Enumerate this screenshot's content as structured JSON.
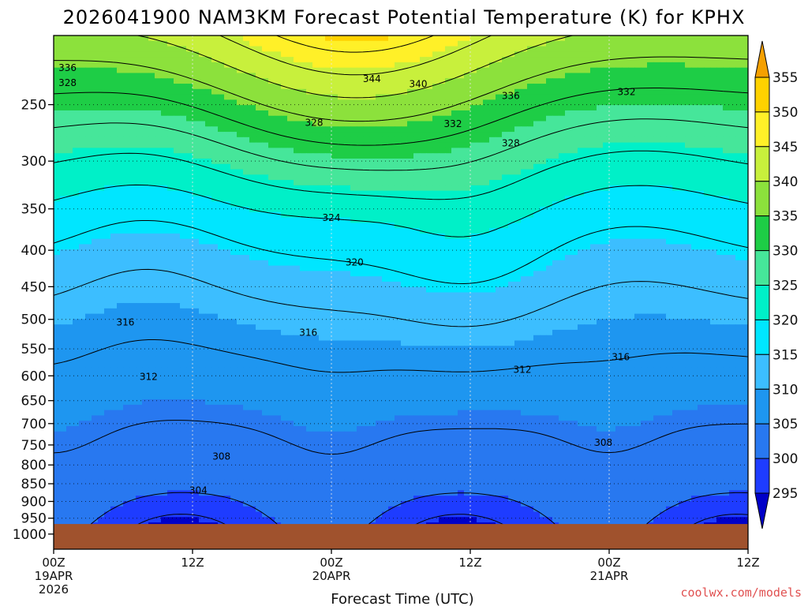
{
  "chart_data": {
    "type": "heatmap",
    "title": "2026041900 NAM3KM Forecast Potential Temperature (K) for KPHX",
    "xlabel": "Forecast Time (UTC)",
    "ylabel": "",
    "x_range_hours": [
      0,
      60
    ],
    "y_range_hpa": [
      1050,
      200
    ],
    "y_scale": "log-pressure",
    "yticks": [
      250,
      300,
      350,
      400,
      450,
      500,
      550,
      600,
      650,
      700,
      750,
      800,
      850,
      900,
      950,
      1000
    ],
    "xticks": [
      {
        "hour": 0,
        "lines": [
          "00Z",
          "19APR",
          "2026"
        ]
      },
      {
        "hour": 12,
        "lines": [
          "12Z"
        ]
      },
      {
        "hour": 24,
        "lines": [
          "00Z",
          "20APR"
        ]
      },
      {
        "hour": 36,
        "lines": [
          "12Z"
        ]
      },
      {
        "hour": 48,
        "lines": [
          "00Z",
          "21APR"
        ]
      },
      {
        "hour": 60,
        "lines": [
          "12Z"
        ]
      }
    ],
    "grid": true,
    "contour_interval_K": 4,
    "colorbar": {
      "levels": [
        295,
        300,
        305,
        310,
        315,
        320,
        325,
        330,
        335,
        340,
        345,
        350,
        355
      ],
      "colors": [
        "#0000c8",
        "#1e3cff",
        "#2878f0",
        "#1e96f0",
        "#3cbeff",
        "#00e6ff",
        "#00f0c8",
        "#46e69a",
        "#1ecd46",
        "#8ce13c",
        "#c8f03c",
        "#fff028",
        "#ffd200",
        "#f5a000"
      ]
    },
    "ground_color": "#a0522d",
    "surface_pressure_hpa": 968,
    "contour_labels": [
      {
        "value": "336",
        "hour": 1.2,
        "p": 222
      },
      {
        "value": "328",
        "hour": 1.2,
        "p": 233
      },
      {
        "value": "344",
        "hour": 27.5,
        "p": 230
      },
      {
        "value": "340",
        "hour": 31.5,
        "p": 234
      },
      {
        "value": "336",
        "hour": 39.5,
        "p": 243
      },
      {
        "value": "332",
        "hour": 49.5,
        "p": 240
      },
      {
        "value": "328",
        "hour": 22.5,
        "p": 265
      },
      {
        "value": "332",
        "hour": 34.5,
        "p": 266
      },
      {
        "value": "328",
        "hour": 39.5,
        "p": 283
      },
      {
        "value": "324",
        "hour": 24,
        "p": 360
      },
      {
        "value": "320",
        "hour": 26,
        "p": 416
      },
      {
        "value": "316",
        "hour": 6.2,
        "p": 505
      },
      {
        "value": "316",
        "hour": 22,
        "p": 522
      },
      {
        "value": "316",
        "hour": 49,
        "p": 565
      },
      {
        "value": "312",
        "hour": 8.2,
        "p": 602
      },
      {
        "value": "312",
        "hour": 40.5,
        "p": 588
      },
      {
        "value": "308",
        "hour": 14.5,
        "p": 778
      },
      {
        "value": "308",
        "hour": 47.5,
        "p": 744
      },
      {
        "value": "304",
        "hour": 12.5,
        "p": 868
      }
    ],
    "colorbar_labels": [
      "355",
      "350",
      "345",
      "340",
      "335",
      "330",
      "325",
      "320",
      "315",
      "310",
      "305",
      "300",
      "295"
    ]
  },
  "credit": "coolwx.com/models",
  "credit_color": "#e05050"
}
